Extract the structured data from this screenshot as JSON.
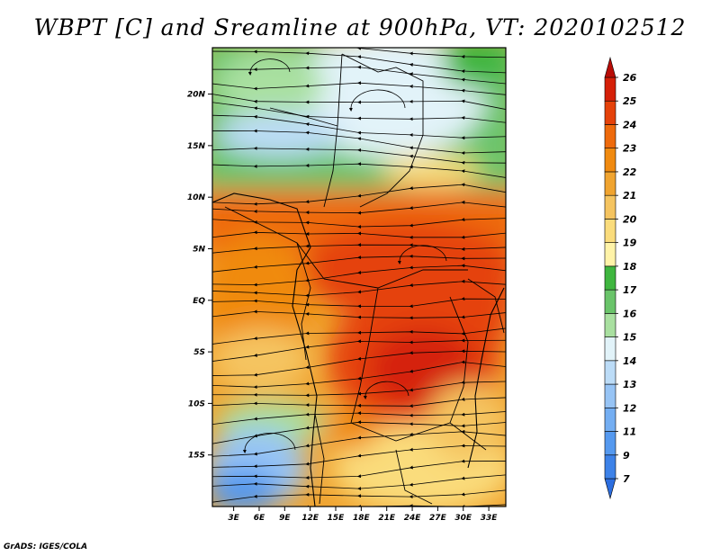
{
  "title": "WBPT [C] and Sreamline at 900hPa, VT: 2020102512",
  "footer": "GrADS: IGES/COLA",
  "lat_ticks": [
    {
      "label": "20N",
      "lat": 20
    },
    {
      "label": "15N",
      "lat": 15
    },
    {
      "label": "10N",
      "lat": 10
    },
    {
      "label": "5N",
      "lat": 5
    },
    {
      "label": "EQ",
      "lat": 0
    },
    {
      "label": "5S",
      "lat": -5
    },
    {
      "label": "10S",
      "lat": -10
    },
    {
      "label": "15S",
      "lat": -15
    }
  ],
  "lon_ticks": [
    {
      "label": "3E",
      "lon": 3
    },
    {
      "label": "6E",
      "lon": 6
    },
    {
      "label": "9E",
      "lon": 9
    },
    {
      "label": "12E",
      "lon": 12
    },
    {
      "label": "15E",
      "lon": 15
    },
    {
      "label": "18E",
      "lon": 18
    },
    {
      "label": "21E",
      "lon": 21
    },
    {
      "label": "24E",
      "lon": 24
    },
    {
      "label": "27E",
      "lon": 27
    },
    {
      "label": "30E",
      "lon": 30
    },
    {
      "label": "33E",
      "lon": 33
    }
  ],
  "map_extent": {
    "lon_min": 0.5,
    "lon_max": 35,
    "lat_min": -20,
    "lat_max": 24.5
  },
  "colorbar": {
    "levels": [
      "7",
      "9",
      "11",
      "12",
      "13",
      "14",
      "15",
      "16",
      "17",
      "18",
      "19",
      "20",
      "21",
      "22",
      "23",
      "24",
      "25",
      "26"
    ],
    "colors": [
      "#2c6ee0",
      "#3d82e8",
      "#5599ef",
      "#74aef2",
      "#97c4f5",
      "#bcdcf7",
      "#e2f3f9",
      "#a9e0a0",
      "#6ac46a",
      "#3fb63f",
      "#fff3a8",
      "#fadc7c",
      "#f5c460",
      "#f0a430",
      "#f08a10",
      "#ee6a0c",
      "#e5420a",
      "#d52008",
      "#b80c06"
    ]
  }
}
